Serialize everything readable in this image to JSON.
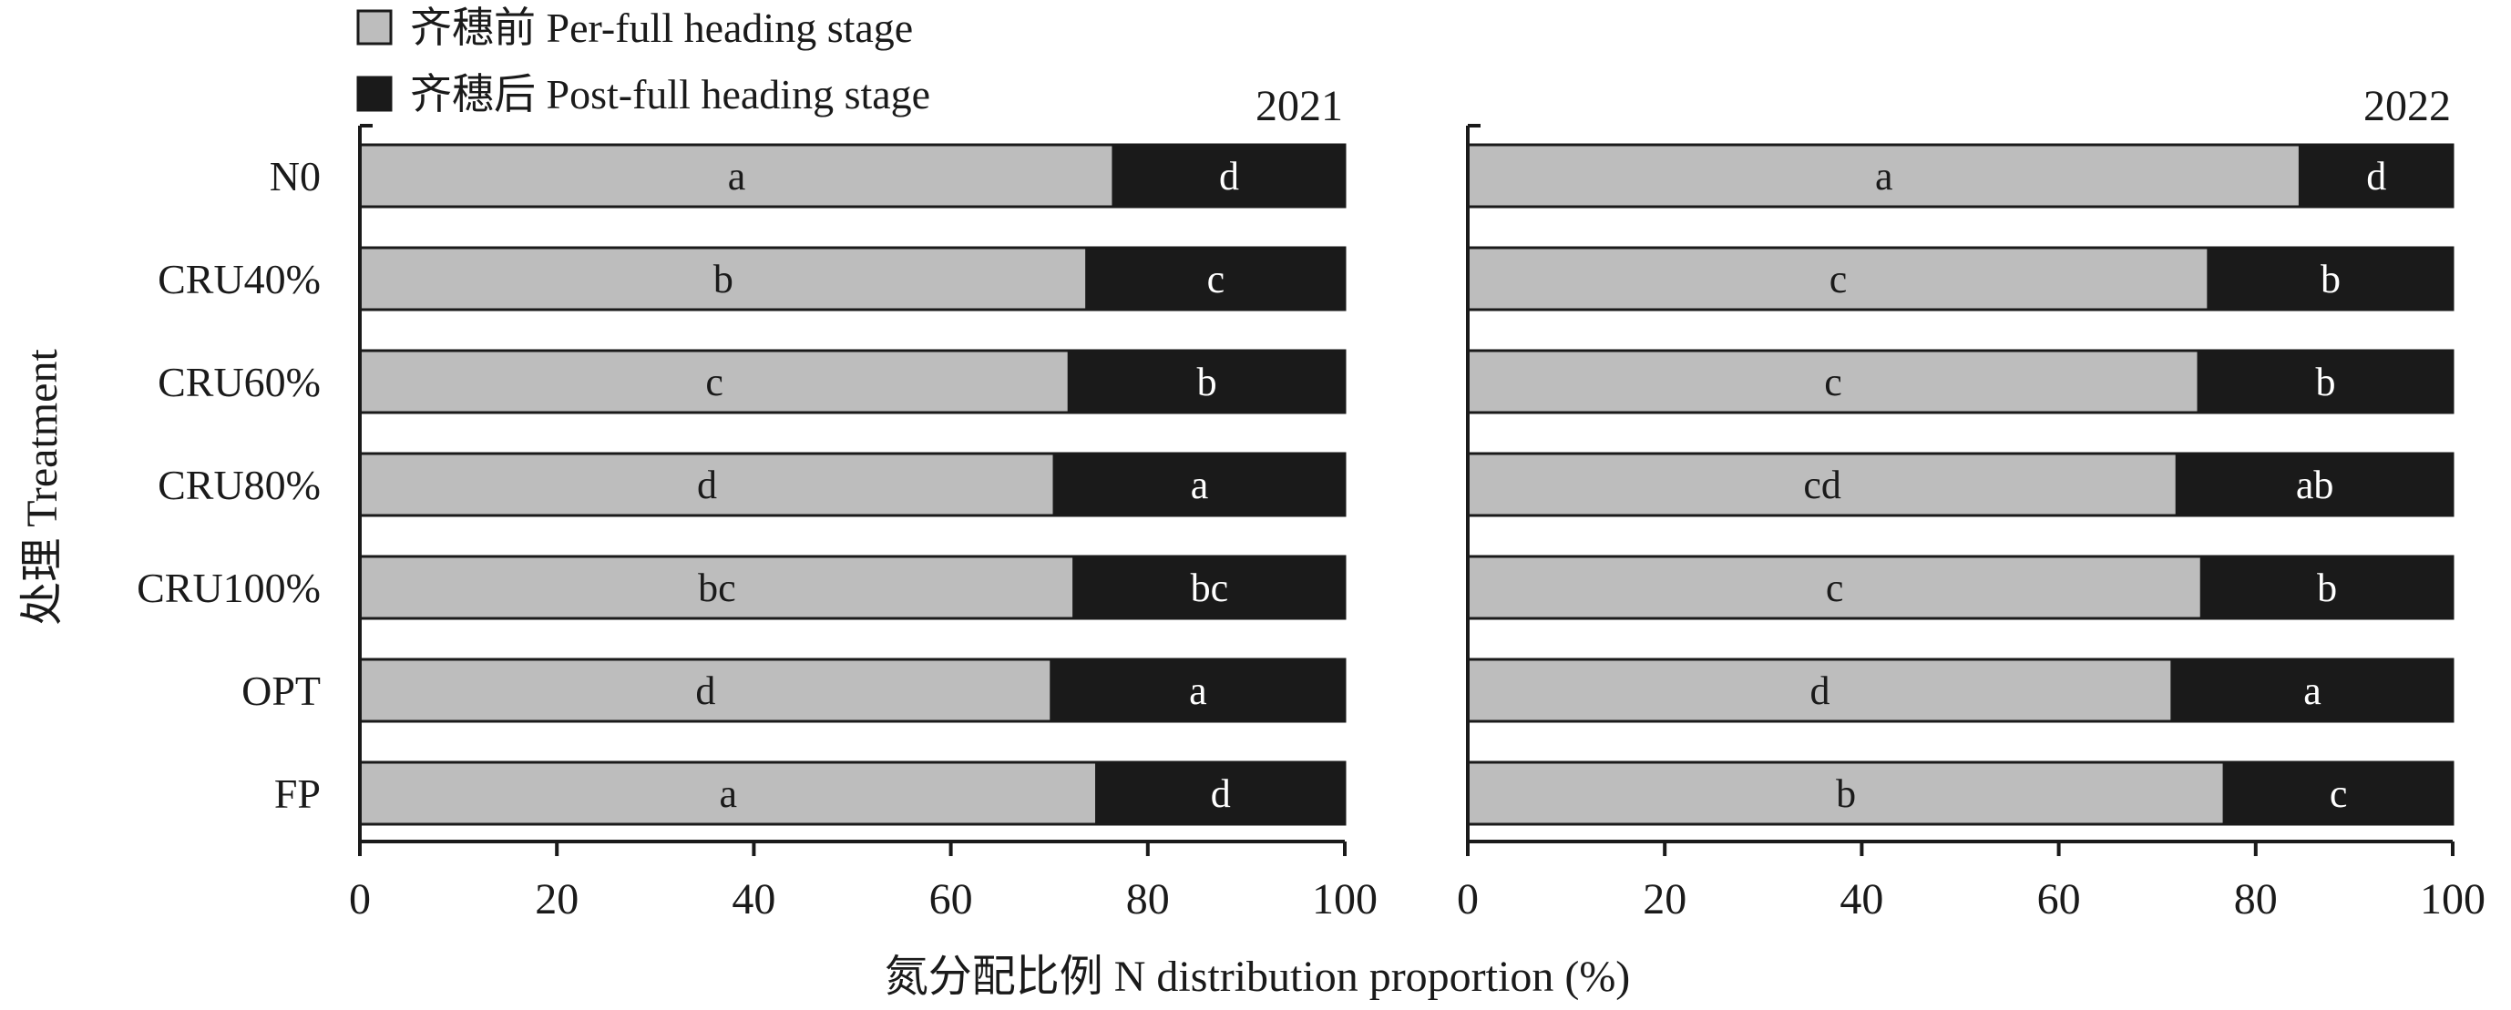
{
  "legend": [
    {
      "label": "齐穗前 Per-full heading stage",
      "color": "#bdbdbd"
    },
    {
      "label": "齐穗后 Post-full heading stage",
      "color": "#1a1a1a"
    }
  ],
  "ylabel": "处理 Treatment",
  "xlabel": "氮分配比例 N  distribution proportion (%)",
  "chart_data": [
    {
      "type": "bar",
      "orientation": "horizontal",
      "stacked": true,
      "title": "2021",
      "categories": [
        "N0",
        "CRU40%",
        "CRU60%",
        "CRU80%",
        "CRU100%",
        "OPT",
        "FP"
      ],
      "series": [
        {
          "name": "齐穗前 Per-full heading stage",
          "values": [
            76.5,
            73.8,
            72.0,
            70.5,
            72.5,
            70.2,
            74.8
          ],
          "labels": [
            "a",
            "b",
            "c",
            "d",
            "bc",
            "d",
            "a"
          ]
        },
        {
          "name": "齐穗后 Post-full heading stage",
          "values": [
            23.5,
            26.2,
            28.0,
            29.5,
            27.5,
            29.8,
            25.2
          ],
          "labels": [
            "d",
            "c",
            "b",
            "a",
            "bc",
            "a",
            "d"
          ]
        }
      ],
      "xlim": [
        0,
        100
      ],
      "xticks": [
        0,
        20,
        40,
        60,
        80,
        100
      ],
      "legend_position": "top-left"
    },
    {
      "type": "bar",
      "orientation": "horizontal",
      "stacked": true,
      "title": "2022",
      "categories": [
        "N0",
        "CRU40%",
        "CRU60%",
        "CRU80%",
        "CRU100%",
        "OPT",
        "FP"
      ],
      "series": [
        {
          "name": "齐穗前 Per-full heading stage",
          "values": [
            84.5,
            75.2,
            74.2,
            72.0,
            74.5,
            71.5,
            76.8
          ],
          "labels": [
            "a",
            "c",
            "c",
            "cd",
            "c",
            "d",
            "b"
          ]
        },
        {
          "name": "齐穗后 Post-full heading stage",
          "values": [
            15.5,
            24.8,
            25.8,
            28.0,
            25.5,
            28.5,
            23.2
          ],
          "labels": [
            "d",
            "b",
            "b",
            "ab",
            "b",
            "a",
            "c"
          ]
        }
      ],
      "xlim": [
        0,
        100
      ],
      "xticks": [
        0,
        20,
        40,
        60,
        80,
        100
      ]
    }
  ]
}
